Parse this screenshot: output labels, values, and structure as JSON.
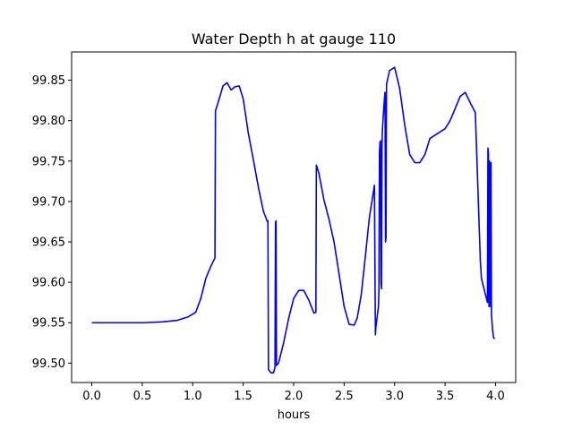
{
  "chart_data": {
    "type": "line",
    "title": "Water Depth h at gauge 110",
    "xlabel": "hours",
    "ylabel": "",
    "xlim": [
      -0.2,
      4.2
    ],
    "ylim": [
      99.476,
      99.885
    ],
    "grid": false,
    "xticks": [
      "0.0",
      "0.5",
      "1.0",
      "1.5",
      "2.0",
      "2.5",
      "3.0",
      "3.5",
      "4.0"
    ],
    "yticks": [
      "99.50",
      "99.55",
      "99.60",
      "99.65",
      "99.70",
      "99.75",
      "99.80",
      "99.85"
    ],
    "series": [
      {
        "name": "",
        "color": "#0000ff",
        "x": [
          0.0,
          0.3,
          0.5,
          0.7,
          0.85,
          0.95,
          1.03,
          1.08,
          1.13,
          1.18,
          1.22,
          1.225,
          1.26,
          1.3,
          1.34,
          1.38,
          1.42,
          1.46,
          1.5,
          1.55,
          1.6,
          1.65,
          1.7,
          1.74,
          1.745,
          1.75,
          1.775,
          1.8,
          1.815,
          1.82,
          1.825,
          1.83,
          1.85,
          1.9,
          1.95,
          2.0,
          2.05,
          2.1,
          2.15,
          2.2,
          2.22,
          2.225,
          2.25,
          2.3,
          2.35,
          2.4,
          2.45,
          2.5,
          2.55,
          2.6,
          2.63,
          2.67,
          2.7,
          2.75,
          2.8,
          2.81,
          2.815,
          2.84,
          2.845,
          2.85,
          2.855,
          2.86,
          2.865,
          2.87,
          2.875,
          2.88,
          2.89,
          2.9,
          2.905,
          2.91,
          2.915,
          2.92,
          2.95,
          3.0,
          3.05,
          3.1,
          3.15,
          3.2,
          3.25,
          3.3,
          3.35,
          3.4,
          3.45,
          3.5,
          3.55,
          3.6,
          3.65,
          3.7,
          3.75,
          3.8,
          3.85,
          3.855,
          3.86,
          3.9,
          3.92,
          3.925,
          3.93,
          3.935,
          3.94,
          3.945,
          3.95,
          3.955,
          3.96,
          3.97,
          3.98,
          3.99
        ],
        "y": [
          99.55,
          99.55,
          99.55,
          99.551,
          99.553,
          99.557,
          99.563,
          99.58,
          99.605,
          99.62,
          99.63,
          99.812,
          99.826,
          99.843,
          99.847,
          99.838,
          99.842,
          99.843,
          99.827,
          99.785,
          99.752,
          99.718,
          99.688,
          99.675,
          99.676,
          99.492,
          99.488,
          99.488,
          99.495,
          99.673,
          99.676,
          99.497,
          99.5,
          99.525,
          99.555,
          99.58,
          99.59,
          99.59,
          99.578,
          99.562,
          99.563,
          99.745,
          99.735,
          99.702,
          99.678,
          99.65,
          99.61,
          99.57,
          99.548,
          99.547,
          99.556,
          99.585,
          99.62,
          99.68,
          99.72,
          99.535,
          99.545,
          99.57,
          99.59,
          99.76,
          99.773,
          99.775,
          99.6,
          99.592,
          99.77,
          99.79,
          99.81,
          99.828,
          99.835,
          99.65,
          99.655,
          99.845,
          99.862,
          99.866,
          99.84,
          99.795,
          99.758,
          99.748,
          99.748,
          99.758,
          99.778,
          99.782,
          99.786,
          99.79,
          99.8,
          99.815,
          99.83,
          99.835,
          99.822,
          99.81,
          99.625,
          99.617,
          99.605,
          99.585,
          99.575,
          99.766,
          99.76,
          99.57,
          99.75,
          99.745,
          99.57,
          99.748,
          99.56,
          99.542,
          99.532,
          99.53
        ]
      }
    ]
  }
}
